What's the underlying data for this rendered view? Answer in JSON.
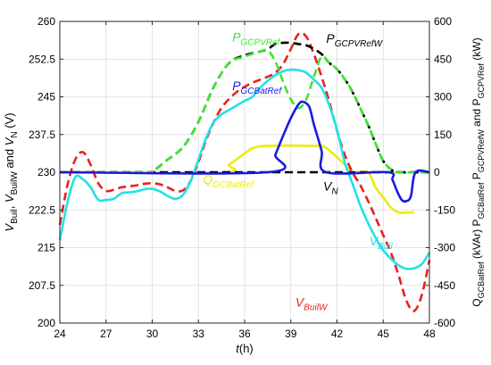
{
  "chart_data": {
    "type": "line",
    "title": "",
    "xlabel": {
      "main": "t",
      "rest": "(h)"
    },
    "ylabel_left": {
      "parts": [
        {
          "text": "V",
          "style": "main"
        },
        {
          "text": "Buil",
          "style": "sub"
        },
        {
          "text": ", ",
          "style": "plain"
        },
        {
          "text": "V",
          "style": "main"
        },
        {
          "text": "BuilW",
          "style": "sub"
        },
        {
          "text": " and ",
          "style": "plain"
        },
        {
          "text": "V",
          "style": "main"
        },
        {
          "text": "N",
          "style": "sub"
        },
        {
          "text": " (V)",
          "style": "plain"
        }
      ]
    },
    "ylabel_right": {
      "parts": [
        {
          "text": "Q",
          "style": "plain"
        },
        {
          "text": "GCBatRef",
          "style": "sub"
        },
        {
          "text": " (kVAr) ",
          "style": "plain"
        },
        {
          "text": "P",
          "style": "plain"
        },
        {
          "text": "GCBatRef",
          "style": "sub"
        },
        {
          "text": " P",
          "style": "plain"
        },
        {
          "text": "GCPVRefW",
          "style": "sub"
        },
        {
          "text": " and ",
          "style": "plain"
        },
        {
          "text": "P",
          "style": "plain"
        },
        {
          "text": "GCPVRef",
          "style": "sub"
        },
        {
          "text": " (kW)",
          "style": "plain"
        }
      ]
    },
    "xlim": [
      24,
      48
    ],
    "ylim_left": [
      200,
      260
    ],
    "ylim_right": [
      -600,
      600
    ],
    "x_ticks": [
      24,
      27,
      30,
      33,
      36,
      39,
      42,
      45,
      48
    ],
    "x_tick_labels": [
      "24",
      "27",
      "30",
      "33",
      "36",
      "39",
      "42",
      "45",
      "48"
    ],
    "y_left_ticks": [
      200,
      207.5,
      215,
      222.5,
      230,
      237.5,
      245,
      252.5,
      260
    ],
    "y_left_tick_labels": [
      "200",
      "207.5",
      "215",
      "222.5",
      "230",
      "237.5",
      "245",
      "252.5",
      "260"
    ],
    "y_right_ticks": [
      -600,
      -450,
      -300,
      -150,
      0,
      150,
      300,
      450,
      600
    ],
    "y_right_tick_labels": [
      "-600",
      "-450",
      "-300",
      "-150",
      "0",
      "150",
      "300",
      "450",
      "600"
    ],
    "grid": true,
    "series": [
      {
        "name": "V_BuilW",
        "axis": "left",
        "color": "#e8211c",
        "dash": "dashed",
        "label": {
          "main": "V",
          "sub": "BuilW",
          "x": 39.3,
          "y": 203.3
        },
        "x": [
          24,
          24.5,
          25,
          25.5,
          26,
          26.5,
          27,
          27.5,
          28,
          28.5,
          29,
          29.5,
          30,
          30.5,
          31,
          31.5,
          32,
          32.5,
          33,
          33.5,
          34,
          34.5,
          35,
          35.5,
          36,
          36.5,
          37,
          37.5,
          38,
          38.5,
          39,
          39.5,
          40,
          40.5,
          41,
          41.5,
          42,
          42.5,
          43,
          43.5,
          44,
          44.5,
          45,
          45.5,
          46,
          46.5,
          47,
          47.5,
          48
        ],
        "values": [
          219.5,
          227.5,
          232.5,
          234.0,
          231.5,
          227.8,
          226.3,
          226.5,
          227.0,
          227.2,
          227.4,
          227.7,
          227.8,
          227.6,
          227.0,
          226.3,
          226.4,
          228.3,
          232.0,
          236.4,
          240.0,
          242.8,
          244.6,
          246.0,
          247.0,
          247.8,
          248.4,
          249.0,
          249.8,
          251.5,
          254.5,
          257.5,
          257.0,
          253.5,
          249.0,
          244.0,
          238.3,
          233.5,
          230.0,
          227.5,
          224.4,
          221.0,
          217.5,
          214.0,
          209.5,
          204.5,
          202.4,
          205.5,
          212.5
        ]
      },
      {
        "name": "V_Buil",
        "axis": "left",
        "color": "#23e0e8",
        "dash": "solid",
        "label": {
          "main": "V",
          "sub": "Buil",
          "x": 44.1,
          "y": 215.4
        },
        "x": [
          24,
          24.5,
          25,
          25.5,
          26,
          26.5,
          27,
          27.5,
          28,
          28.5,
          29,
          29.5,
          30,
          30.5,
          31,
          31.5,
          32,
          32.5,
          33,
          33.5,
          34,
          34.5,
          35,
          35.5,
          36,
          36.5,
          37,
          37.5,
          38,
          38.5,
          39,
          39.5,
          40,
          40.5,
          41,
          41.5,
          42,
          42.5,
          43,
          43.5,
          44,
          44.5,
          45,
          45.5,
          46,
          46.5,
          47,
          47.5,
          48
        ],
        "values": [
          216.5,
          224.0,
          229.0,
          228.6,
          227.0,
          224.5,
          224.5,
          224.7,
          225.8,
          226.0,
          226.2,
          226.6,
          226.7,
          226.2,
          225.3,
          224.7,
          225.5,
          228.3,
          232.5,
          236.8,
          240.0,
          241.5,
          242.4,
          243.3,
          244.2,
          245.0,
          246.8,
          248.2,
          249.3,
          250.1,
          250.4,
          250.3,
          249.8,
          248.4,
          246.8,
          243.3,
          238.5,
          232.0,
          227.8,
          223.5,
          220.0,
          217.0,
          214.5,
          212.8,
          211.5,
          210.8,
          210.9,
          211.7,
          214.0
        ]
      },
      {
        "name": "V_N",
        "axis": "left",
        "color": "#000000",
        "dash": "dashed",
        "label": {
          "main": "V",
          "sub": "N",
          "x": 41.1,
          "y": 226.4
        },
        "x": [
          24,
          48
        ],
        "values": [
          230,
          230
        ]
      },
      {
        "name": "Q_GCBatRef",
        "axis": "right",
        "color": "#ecec0c",
        "dash": "solid",
        "label": {
          "main": "Q",
          "sub": "GCBatRef",
          "x": 33.3,
          "y": -46
        },
        "x": [
          24,
          34.5,
          35,
          35.8,
          36.5,
          37.5,
          40.5,
          41.2,
          42,
          42.5,
          43,
          44,
          44.5,
          45,
          45.5,
          46,
          46.5,
          47
        ],
        "values": [
          0,
          0,
          30,
          65,
          95,
          105,
          105,
          100,
          60,
          30,
          0,
          0,
          -60,
          -100,
          -140,
          -160,
          -160,
          -160
        ]
      },
      {
        "name": "P_GCPVRefW",
        "axis": "right",
        "color": "#000000",
        "dash": "dashed",
        "label": {
          "main": "P",
          "sub": "GCPVRefW",
          "x": 41.3,
          "y": 515
        },
        "x": [
          24,
          29.5,
          30,
          31,
          32,
          33,
          34,
          35,
          36,
          37,
          37.5,
          38,
          38.5,
          39,
          39.5,
          40,
          40.5,
          41,
          41.5,
          42,
          42.5,
          43,
          44,
          44.5,
          45,
          45.5,
          46,
          48
        ],
        "values": [
          0,
          0,
          3,
          50,
          100,
          200,
          340,
          435,
          465,
          480,
          490,
          510,
          515,
          515,
          510,
          505,
          490,
          470,
          435,
          410,
          370,
          320,
          190,
          115,
          45,
          12,
          0,
          0
        ]
      },
      {
        "name": "P_GCPVRef",
        "axis": "right",
        "color": "#3ee630",
        "dash": "dashed",
        "label": {
          "main": "P",
          "sub": "GCPVRef",
          "x": 35.2,
          "y": 520
        },
        "x": [
          24,
          29.5,
          30,
          31,
          32,
          33,
          34,
          35,
          36,
          37,
          37.5,
          38,
          38.5,
          39,
          39.5,
          40,
          40.5,
          41,
          41.5,
          42,
          42.5,
          43,
          44,
          44.5,
          45,
          45.5,
          46,
          48
        ],
        "values": [
          0,
          0,
          3,
          50,
          100,
          200,
          340,
          435,
          460,
          480,
          485,
          440,
          360,
          290,
          255,
          290,
          380,
          460,
          435,
          410,
          370,
          320,
          190,
          115,
          45,
          12,
          0,
          0
        ]
      },
      {
        "name": "P_GCBatRef",
        "axis": "right",
        "color": "#1a1ae0",
        "dash": "solid",
        "label": {
          "main": "P",
          "sub": "GCBatRef",
          "x": 35.2,
          "y": 327
        },
        "x": [
          24,
          37.5,
          38,
          38.5,
          39,
          39.5,
          39.8,
          40.2,
          40.5,
          41,
          41.3,
          45.3,
          45.6,
          45.9,
          46.2,
          46.5,
          46.8,
          47.1,
          48
        ],
        "values": [
          0,
          0,
          70,
          145,
          215,
          270,
          280,
          260,
          190,
          85,
          0,
          0,
          -30,
          -75,
          -110,
          -115,
          -95,
          0,
          0
        ]
      }
    ],
    "draw_order": [
      "Q_GCBatRef",
      "V_BuilW",
      "V_N",
      "P_GCPVRefW",
      "P_GCPVRef",
      "V_Buil",
      "P_GCBatRef"
    ]
  }
}
